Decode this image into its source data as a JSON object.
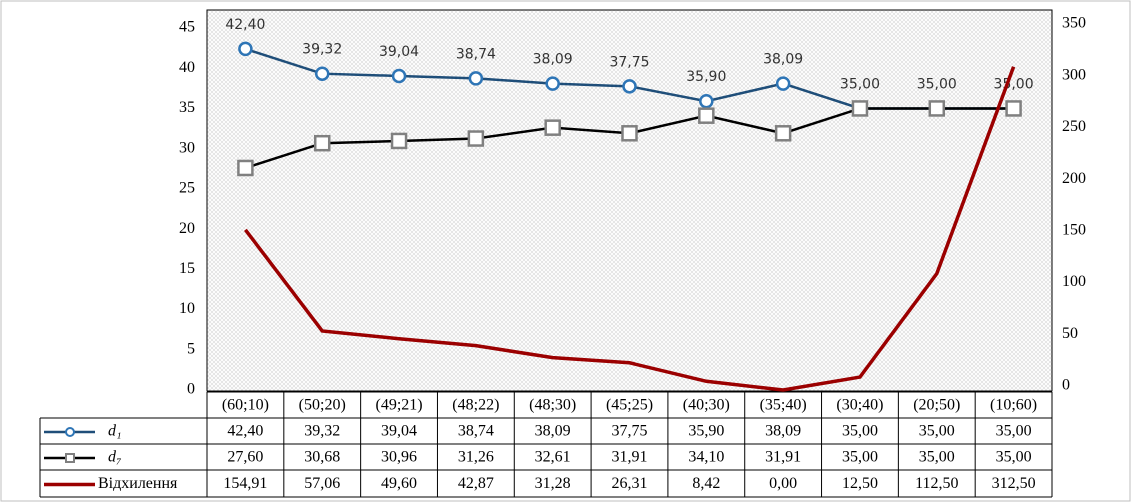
{
  "chart_data": {
    "type": "line",
    "categories": [
      "(60;10)",
      "(50;20)",
      "(49;21)",
      "(48;22)",
      "(48;30)",
      "(45;25)",
      "(40;30)",
      "(35;40)",
      "(30;40)",
      "(20;50)",
      "(10;60)"
    ],
    "ylim": [
      0,
      45
    ],
    "yticks": [
      0,
      5,
      10,
      15,
      20,
      25,
      30,
      35,
      40,
      45
    ],
    "y2lim": [
      0,
      350
    ],
    "y2ticks": [
      0,
      50,
      100,
      150,
      200,
      250,
      300,
      350
    ],
    "grid": false,
    "series": [
      {
        "name": "d₁",
        "color": "#1f4e79",
        "marker": "circle",
        "marker_color": "#2e75b6",
        "data_labels": true,
        "values": [
          42.4,
          39.32,
          39.04,
          38.74,
          38.09,
          37.75,
          35.9,
          38.09,
          35.0,
          35.0,
          35.0
        ],
        "value_labels": [
          "42,40",
          "39,32",
          "39,04",
          "38,74",
          "38,09",
          "37,75",
          "35,90",
          "38,09",
          "35,00",
          "35,00",
          "35,00"
        ]
      },
      {
        "name": "d₇",
        "color": "#000000",
        "marker": "square",
        "marker_color": "#808080",
        "values": [
          27.6,
          30.68,
          30.96,
          31.26,
          32.61,
          31.91,
          34.1,
          31.91,
          35.0,
          35.0,
          35.0
        ],
        "value_labels": [
          "27,60",
          "30,68",
          "30,96",
          "31,26",
          "32,61",
          "31,91",
          "34,10",
          "31,91",
          "35,00",
          "35,00",
          "35,00"
        ]
      },
      {
        "name": "Відхилення",
        "color": "#9b0000",
        "axis": "y2",
        "values": [
          154.91,
          57.06,
          49.6,
          42.87,
          31.28,
          26.31,
          8.42,
          0.0,
          12.5,
          112.5,
          312.5
        ],
        "value_labels": [
          "154,91",
          "57,06",
          "49,60",
          "42,87",
          "31,28",
          "26,31",
          "8,42",
          "0,00",
          "12,50",
          "112,50",
          "312,50"
        ]
      }
    ]
  }
}
